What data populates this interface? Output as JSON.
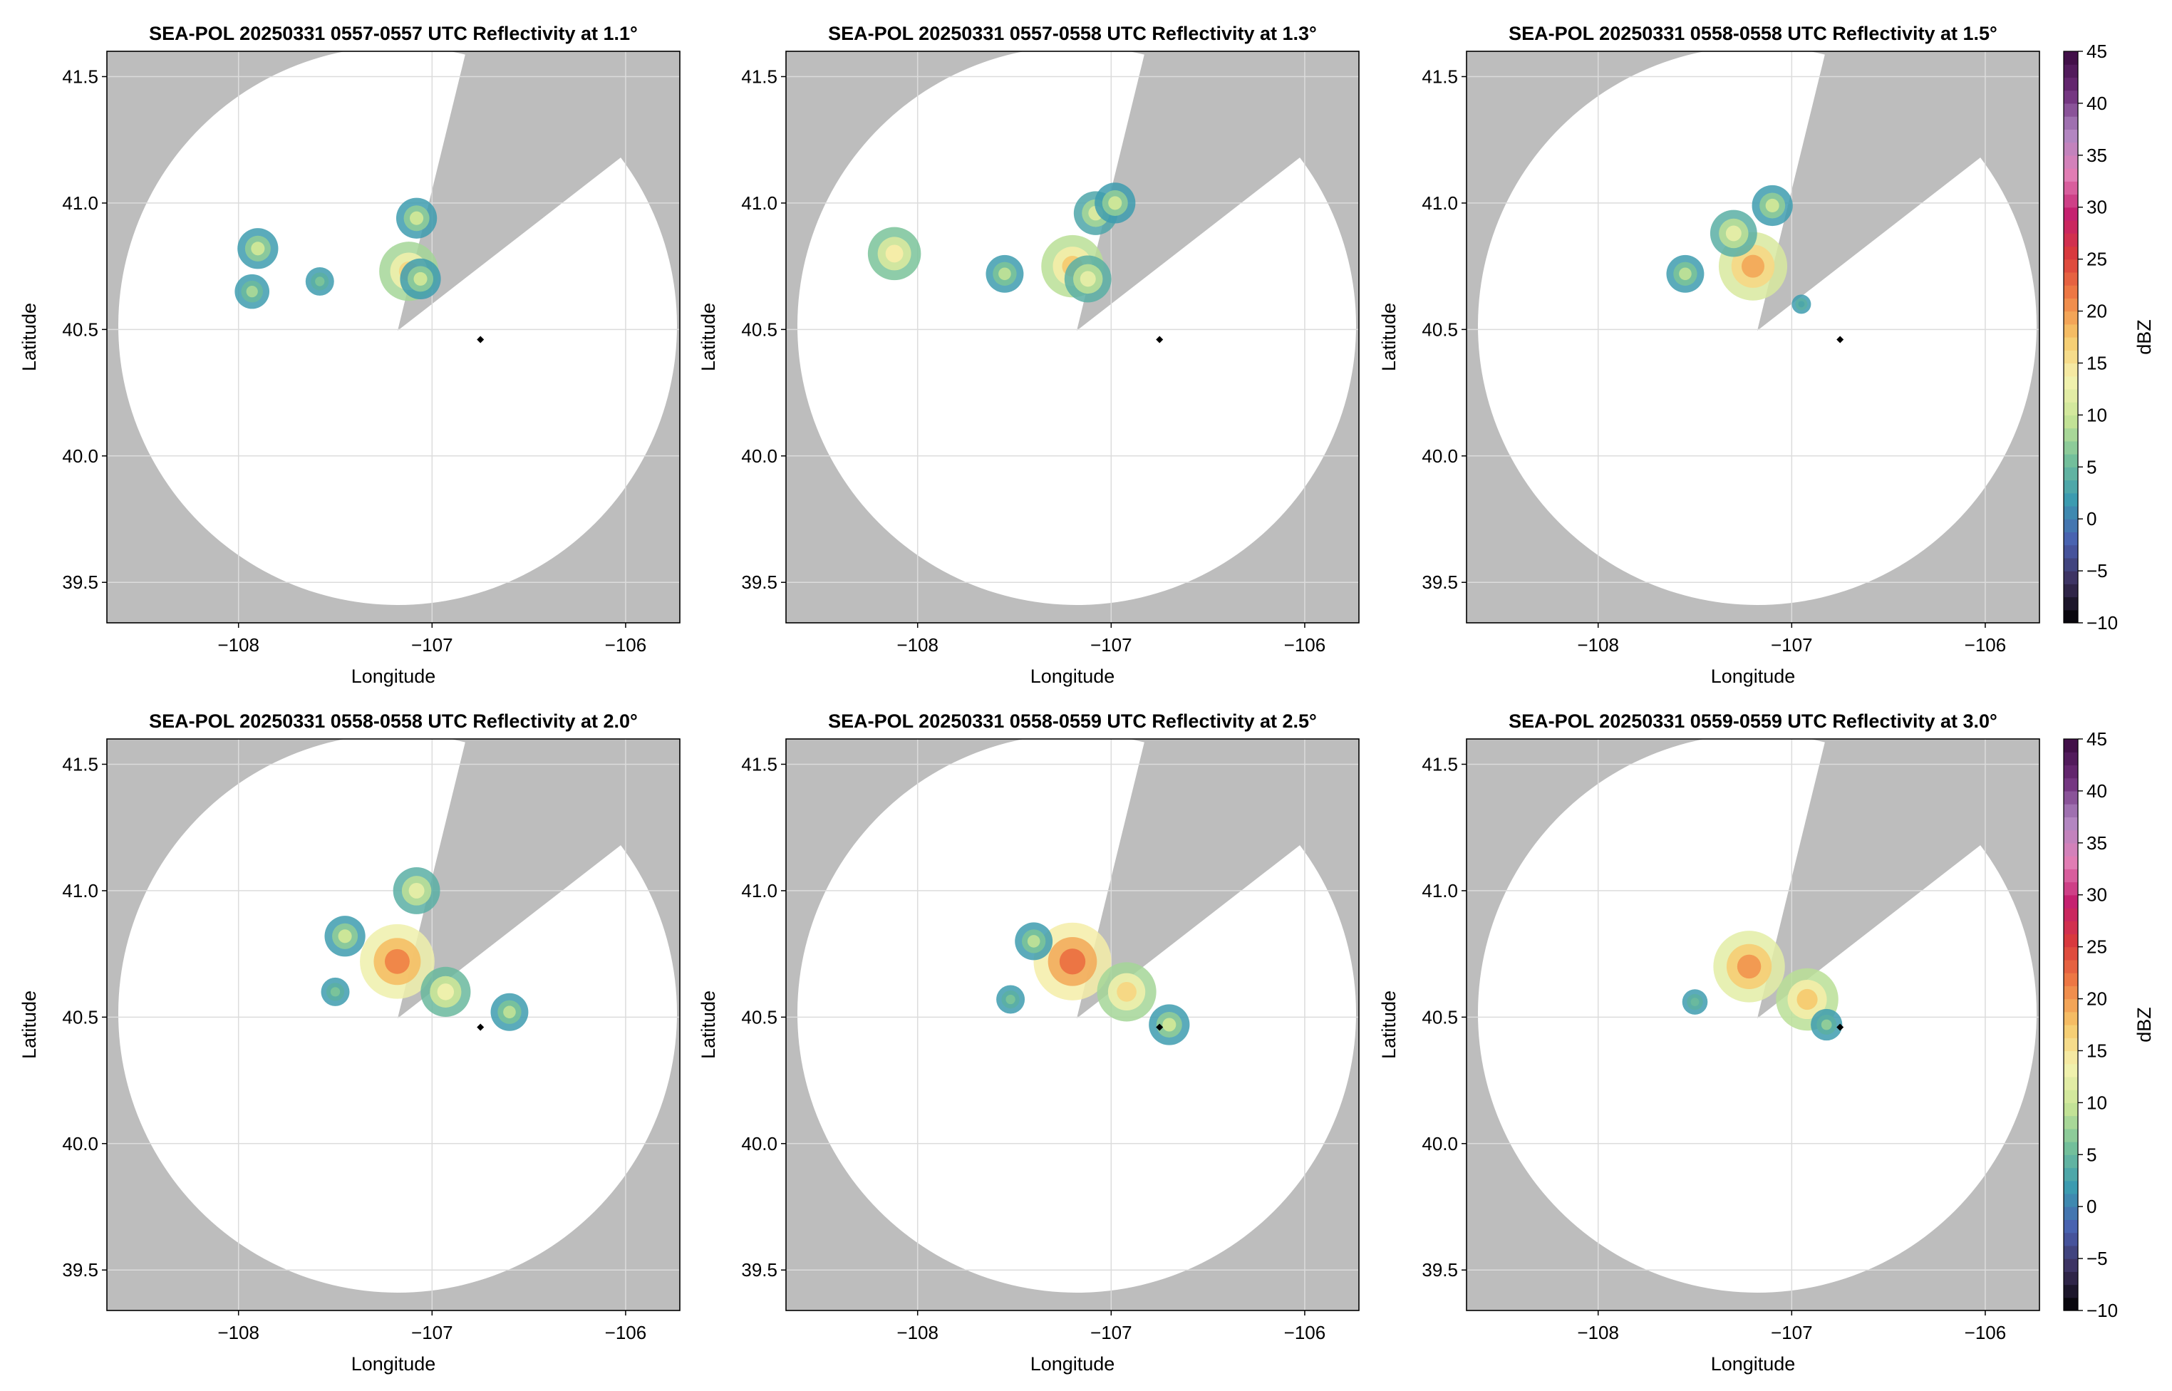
{
  "figure": {
    "background": "#ffffff",
    "mask_color": "#bdbdbd",
    "grid_color": "#dcdcdc"
  },
  "colorbar": {
    "label": "dBZ",
    "vmin": -10,
    "vmax": 45,
    "ticks": [
      "45",
      "40",
      "35",
      "30",
      "25",
      "20",
      "15",
      "10",
      "5",
      "0",
      "−5",
      "−10"
    ],
    "tick_values": [
      45,
      40,
      35,
      30,
      25,
      20,
      15,
      10,
      5,
      0,
      -5,
      -10
    ],
    "colormap": "Spectral-reversed (dark low, blue, green, yellow, orange, red, magenta, purple high)",
    "stops": [
      "#000000",
      "#3b2f5a",
      "#4a5fb0",
      "#3b9ab0",
      "#74c09a",
      "#c8e596",
      "#f5f2b0",
      "#f6c86a",
      "#ef7f45",
      "#d93b3b",
      "#c41f6e",
      "#e27fb6",
      "#b086c2",
      "#6d2d7a",
      "#3a0a40"
    ]
  },
  "chart_data": [
    {
      "type": "heatmap",
      "title": "SEA-POL 20250331 0557-0557 UTC Reflectivity at 1.1°",
      "xlabel": "Longitude",
      "ylabel": "Latitude",
      "xlim": [
        -108.68,
        -105.72
      ],
      "ylim": [
        39.34,
        41.6
      ],
      "xticks": [
        -108,
        -107,
        -106
      ],
      "xtick_labels": [
        "−108",
        "−107",
        "−106"
      ],
      "yticks": [
        39.5,
        40.0,
        40.5,
        41.0,
        41.5
      ],
      "ytick_labels": [
        "39.5",
        "40.0",
        "40.5",
        "41.0",
        "41.5"
      ],
      "grid": true,
      "elevation_deg": 1.1,
      "radar_center": [
        -107.0,
        40.46
      ],
      "station_marker": [
        -106.75,
        40.46
      ],
      "echoes": [
        {
          "lon": -107.12,
          "lat": 40.73,
          "dbz": 16
        },
        {
          "lon": -107.06,
          "lat": 40.7,
          "dbz": 10
        },
        {
          "lon": -107.08,
          "lat": 40.94,
          "dbz": 10
        },
        {
          "lon": -107.9,
          "lat": 40.82,
          "dbz": 10
        },
        {
          "lon": -107.93,
          "lat": 40.65,
          "dbz": 8
        },
        {
          "lon": -107.58,
          "lat": 40.69,
          "dbz": 6
        }
      ]
    },
    {
      "type": "heatmap",
      "title": "SEA-POL 20250331 0557-0558 UTC Reflectivity at 1.3°",
      "xlabel": "Longitude",
      "ylabel": "Latitude",
      "xlim": [
        -108.68,
        -105.72
      ],
      "ylim": [
        39.34,
        41.6
      ],
      "xticks": [
        -108,
        -107,
        -106
      ],
      "xtick_labels": [
        "−108",
        "−107",
        "−106"
      ],
      "yticks": [
        39.5,
        40.0,
        40.5,
        41.0,
        41.5
      ],
      "ytick_labels": [
        "39.5",
        "40.0",
        "40.5",
        "41.0",
        "41.5"
      ],
      "grid": true,
      "elevation_deg": 1.3,
      "radar_center": [
        -107.0,
        40.46
      ],
      "station_marker": [
        -106.75,
        40.46
      ],
      "echoes": [
        {
          "lon": -107.2,
          "lat": 40.75,
          "dbz": 17
        },
        {
          "lon": -107.12,
          "lat": 40.7,
          "dbz": 12
        },
        {
          "lon": -107.55,
          "lat": 40.72,
          "dbz": 9
        },
        {
          "lon": -107.08,
          "lat": 40.96,
          "dbz": 11
        },
        {
          "lon": -106.98,
          "lat": 41.0,
          "dbz": 10
        },
        {
          "lon": -108.12,
          "lat": 40.8,
          "dbz": 14
        }
      ]
    },
    {
      "type": "heatmap",
      "title": "SEA-POL 20250331 0558-0558 UTC Reflectivity at 1.5°",
      "xlabel": "Longitude",
      "ylabel": "Latitude",
      "xlim": [
        -108.68,
        -105.72
      ],
      "ylim": [
        39.34,
        41.6
      ],
      "xticks": [
        -108,
        -107,
        -106
      ],
      "xtick_labels": [
        "−108",
        "−107",
        "−106"
      ],
      "yticks": [
        39.5,
        40.0,
        40.5,
        41.0,
        41.5
      ],
      "ytick_labels": [
        "39.5",
        "40.0",
        "40.5",
        "41.0",
        "41.5"
      ],
      "grid": true,
      "elevation_deg": 1.5,
      "radar_center": [
        -107.0,
        40.46
      ],
      "station_marker": [
        -106.75,
        40.46
      ],
      "echoes": [
        {
          "lon": -107.2,
          "lat": 40.75,
          "dbz": 19
        },
        {
          "lon": -107.3,
          "lat": 40.88,
          "dbz": 12
        },
        {
          "lon": -107.55,
          "lat": 40.72,
          "dbz": 9
        },
        {
          "lon": -107.1,
          "lat": 40.99,
          "dbz": 10
        },
        {
          "lon": -106.95,
          "lat": 40.6,
          "dbz": 3
        }
      ]
    },
    {
      "type": "heatmap",
      "title": "SEA-POL 20250331 0558-0558 UTC Reflectivity at 2.0°",
      "xlabel": "Longitude",
      "ylabel": "Latitude",
      "xlim": [
        -108.68,
        -105.72
      ],
      "ylim": [
        39.34,
        41.6
      ],
      "xticks": [
        -108,
        -107,
        -106
      ],
      "xtick_labels": [
        "−108",
        "−107",
        "−106"
      ],
      "yticks": [
        39.5,
        40.0,
        40.5,
        41.0,
        41.5
      ],
      "ytick_labels": [
        "39.5",
        "40.0",
        "40.5",
        "41.0",
        "41.5"
      ],
      "grid": true,
      "elevation_deg": 2.0,
      "radar_center": [
        -107.0,
        40.46
      ],
      "station_marker": [
        -106.75,
        40.46
      ],
      "echoes": [
        {
          "lon": -107.18,
          "lat": 40.72,
          "dbz": 21
        },
        {
          "lon": -107.45,
          "lat": 40.82,
          "dbz": 10
        },
        {
          "lon": -107.5,
          "lat": 40.6,
          "dbz": 6
        },
        {
          "lon": -107.08,
          "lat": 41.0,
          "dbz": 12
        },
        {
          "lon": -106.93,
          "lat": 40.6,
          "dbz": 13
        },
        {
          "lon": -106.6,
          "lat": 40.52,
          "dbz": 9
        }
      ]
    },
    {
      "type": "heatmap",
      "title": "SEA-POL 20250331 0558-0559 UTC Reflectivity at 2.5°",
      "xlabel": "Longitude",
      "ylabel": "Latitude",
      "xlim": [
        -108.68,
        -105.72
      ],
      "ylim": [
        39.34,
        41.6
      ],
      "xticks": [
        -108,
        -107,
        -106
      ],
      "xtick_labels": [
        "−108",
        "−107",
        "−106"
      ],
      "yticks": [
        39.5,
        40.0,
        40.5,
        41.0,
        41.5
      ],
      "ytick_labels": [
        "39.5",
        "40.0",
        "40.5",
        "41.0",
        "41.5"
      ],
      "grid": true,
      "elevation_deg": 2.5,
      "radar_center": [
        -107.0,
        40.46
      ],
      "station_marker": [
        -106.75,
        40.46
      ],
      "echoes": [
        {
          "lon": -107.2,
          "lat": 40.72,
          "dbz": 22
        },
        {
          "lon": -107.52,
          "lat": 40.57,
          "dbz": 6
        },
        {
          "lon": -106.92,
          "lat": 40.6,
          "dbz": 16
        },
        {
          "lon": -106.7,
          "lat": 40.47,
          "dbz": 10
        },
        {
          "lon": -107.4,
          "lat": 40.8,
          "dbz": 9
        }
      ]
    },
    {
      "type": "heatmap",
      "title": "SEA-POL 20250331 0559-0559 UTC Reflectivity at 3.0°",
      "xlabel": "Longitude",
      "ylabel": "Latitude",
      "xlim": [
        -108.68,
        -105.72
      ],
      "ylim": [
        39.34,
        41.6
      ],
      "xticks": [
        -108,
        -107,
        -106
      ],
      "xtick_labels": [
        "−108",
        "−107",
        "−106"
      ],
      "yticks": [
        39.5,
        40.0,
        40.5,
        41.0,
        41.5
      ],
      "ytick_labels": [
        "39.5",
        "40.0",
        "40.5",
        "41.0",
        "41.5"
      ],
      "grid": true,
      "elevation_deg": 3.0,
      "radar_center": [
        -107.0,
        40.46
      ],
      "station_marker": [
        -106.75,
        40.46
      ],
      "echoes": [
        {
          "lon": -107.22,
          "lat": 40.7,
          "dbz": 20
        },
        {
          "lon": -107.5,
          "lat": 40.56,
          "dbz": 5
        },
        {
          "lon": -106.92,
          "lat": 40.57,
          "dbz": 17
        },
        {
          "lon": -106.82,
          "lat": 40.47,
          "dbz": 7
        }
      ]
    }
  ]
}
